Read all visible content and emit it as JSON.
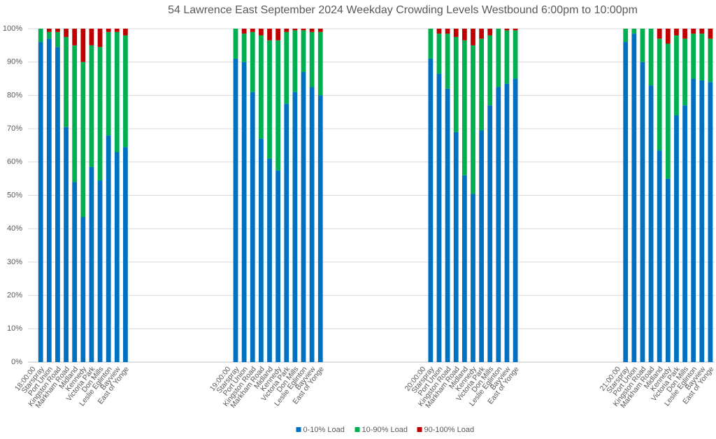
{
  "chart_data": {
    "type": "stacked_bar",
    "title": "54 Lawrence East September 2024  Weekday Crowding Levels Westbound 6:00pm to 10:00pm",
    "categories": [
      "18:00:00",
      "Starspray",
      "Port Union",
      "Kingston Road",
      "Markham Road",
      "Midland",
      "Kennedy",
      "Victoria Park",
      "Don Mills",
      "Leslie Eglinton",
      "Bayview",
      "East of Yonge",
      null,
      null,
      null,
      null,
      null,
      null,
      null,
      null,
      null,
      null,
      null,
      "19:00:00",
      "Starspray",
      "Port Union",
      "Kingston Road",
      "Markham Road",
      "Midland",
      "Kennedy",
      "Victoria Park",
      "Don Mills",
      "Leslie Eglinton",
      "Bayview",
      "East of Yonge",
      null,
      null,
      null,
      null,
      null,
      null,
      null,
      null,
      null,
      null,
      null,
      "20:00:00",
      "Starspray",
      "Port Union",
      "Kingston Road",
      "Markham Road",
      "Midland",
      "Kennedy",
      "Victoria Park",
      "Don Mills",
      "Leslie Eglinton",
      "Bayview",
      "East of Yonge",
      null,
      null,
      null,
      null,
      null,
      null,
      null,
      null,
      null,
      null,
      null,
      "21:00:00",
      "Starspray",
      "Port Union",
      "Kingston Road",
      "Markham Road",
      "Midland",
      "Kennedy",
      "Victoria Park",
      "Don Mills",
      "Leslie Eglinton",
      "Bayview",
      "East of Yonge"
    ],
    "series": [
      {
        "name": "0-10% Load",
        "color": "#0070c0",
        "values": [
          null,
          96,
          97,
          94.5,
          70.5,
          54,
          43.5,
          58.5,
          54.5,
          68,
          63,
          64.5,
          null,
          null,
          null,
          null,
          null,
          null,
          null,
          null,
          null,
          null,
          null,
          null,
          91,
          90,
          81,
          67,
          61,
          57.5,
          77.5,
          81,
          87,
          82.5,
          80,
          null,
          null,
          null,
          null,
          null,
          null,
          null,
          null,
          null,
          null,
          null,
          null,
          91,
          86.5,
          82,
          69,
          56,
          50.5,
          69.5,
          77,
          82.5,
          83.5,
          85,
          null,
          null,
          null,
          null,
          null,
          null,
          null,
          null,
          null,
          null,
          null,
          null,
          96,
          98.5,
          90,
          83,
          63.5,
          55,
          74,
          77,
          85,
          84.5,
          84
        ]
      },
      {
        "name": "10-90% Load",
        "color": "#00b050",
        "values": [
          null,
          4,
          2,
          4.5,
          27,
          41,
          46.5,
          36.5,
          40,
          31,
          36,
          33.5,
          null,
          null,
          null,
          null,
          null,
          null,
          null,
          null,
          null,
          null,
          null,
          null,
          9,
          8.5,
          18,
          31,
          35.5,
          39,
          21.5,
          18.5,
          12.5,
          16.5,
          19,
          null,
          null,
          null,
          null,
          null,
          null,
          null,
          null,
          null,
          null,
          null,
          null,
          9,
          12,
          16.5,
          28.5,
          40.5,
          44.5,
          27.5,
          21,
          17.5,
          16,
          14.5,
          null,
          null,
          null,
          null,
          null,
          null,
          null,
          null,
          null,
          null,
          null,
          null,
          4,
          1.5,
          10,
          17,
          33.5,
          40.5,
          24,
          20,
          13.5,
          14,
          13
        ]
      },
      {
        "name": "90-100% Load",
        "color": "#c00000",
        "values": [
          null,
          0,
          1,
          1,
          2.5,
          5,
          10,
          5,
          5.5,
          1,
          1,
          2,
          null,
          null,
          null,
          null,
          null,
          null,
          null,
          null,
          null,
          null,
          null,
          null,
          0,
          1.5,
          1,
          2,
          3.5,
          3.5,
          1,
          0.5,
          0.5,
          1,
          1,
          null,
          null,
          null,
          null,
          null,
          null,
          null,
          null,
          null,
          null,
          null,
          null,
          0,
          1.5,
          1.5,
          2.5,
          3.5,
          5,
          3,
          2,
          0,
          0.5,
          0.5,
          null,
          null,
          null,
          null,
          null,
          null,
          null,
          null,
          null,
          null,
          null,
          null,
          0,
          0,
          0,
          0,
          3,
          4.5,
          2,
          3,
          1.5,
          1.5,
          3
        ]
      }
    ],
    "ylim": [
      0,
      100
    ],
    "yticks": [
      {
        "value": 0,
        "label": "0%"
      },
      {
        "value": 10,
        "label": "10%"
      },
      {
        "value": 20,
        "label": "20%"
      },
      {
        "value": 30,
        "label": "30%"
      },
      {
        "value": 40,
        "label": "40%"
      },
      {
        "value": 50,
        "label": "50%"
      },
      {
        "value": 60,
        "label": "60%"
      },
      {
        "value": 70,
        "label": "70%"
      },
      {
        "value": 80,
        "label": "80%"
      },
      {
        "value": 90,
        "label": "90%"
      },
      {
        "value": 100,
        "label": "100%"
      }
    ],
    "grid": true,
    "legend": "bottom"
  }
}
